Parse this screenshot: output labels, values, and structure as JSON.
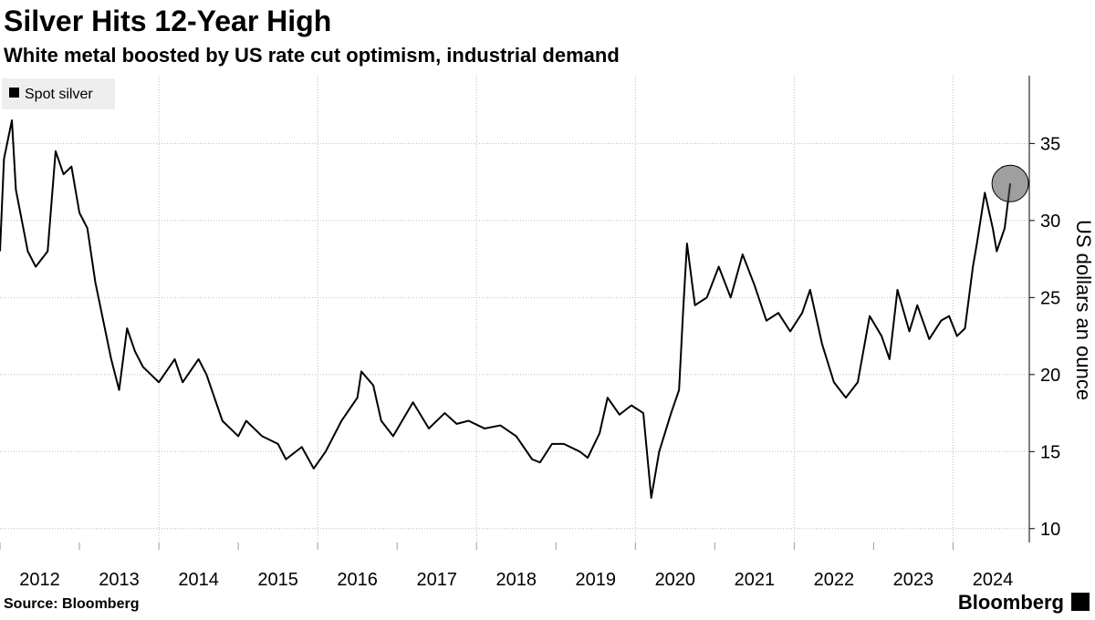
{
  "chart_data": {
    "type": "line",
    "title": "Silver Hits 12-Year High",
    "subtitle": "White metal boosted by US rate cut optimism, industrial demand",
    "y_label": "US dollars an ounce",
    "source": "Source: Bloomberg",
    "brand": "Bloomberg",
    "x": [
      2012.0,
      2012.05,
      2012.15,
      2012.2,
      2012.35,
      2012.45,
      2012.6,
      2012.7,
      2012.8,
      2012.9,
      2013.0,
      2013.1,
      2013.2,
      2013.3,
      2013.4,
      2013.5,
      2013.6,
      2013.7,
      2013.8,
      2013.9,
      2014.0,
      2014.2,
      2014.3,
      2014.5,
      2014.6,
      2014.8,
      2015.0,
      2015.1,
      2015.3,
      2015.5,
      2015.6,
      2015.8,
      2015.95,
      2016.1,
      2016.3,
      2016.5,
      2016.55,
      2016.7,
      2016.8,
      2016.95,
      2017.2,
      2017.4,
      2017.6,
      2017.75,
      2017.9,
      2018.1,
      2018.3,
      2018.5,
      2018.7,
      2018.8,
      2018.95,
      2019.1,
      2019.3,
      2019.4,
      2019.55,
      2019.65,
      2019.8,
      2019.95,
      2020.1,
      2020.2,
      2020.3,
      2020.45,
      2020.55,
      2020.6,
      2020.65,
      2020.75,
      2020.9,
      2021.05,
      2021.2,
      2021.35,
      2021.5,
      2021.65,
      2021.8,
      2021.95,
      2022.1,
      2022.2,
      2022.35,
      2022.5,
      2022.65,
      2022.8,
      2022.95,
      2023.1,
      2023.2,
      2023.3,
      2023.45,
      2023.55,
      2023.7,
      2023.85,
      2023.95,
      2024.05,
      2024.15,
      2024.25,
      2024.3,
      2024.4,
      2024.5,
      2024.55,
      2024.65,
      2024.72
    ],
    "series": [
      {
        "name": "Spot silver",
        "color": "#000000",
        "values": [
          28,
          34,
          36.5,
          32,
          28,
          27,
          28,
          34.5,
          33,
          33.5,
          30.5,
          29.5,
          26,
          23.5,
          21,
          19,
          23,
          21.5,
          20.5,
          20,
          19.5,
          21,
          19.5,
          21,
          20,
          17,
          16,
          17,
          16,
          15.5,
          14.5,
          15.3,
          13.9,
          15,
          17,
          18.5,
          20.2,
          19.3,
          17,
          16,
          18.2,
          16.5,
          17.5,
          16.8,
          17,
          16.5,
          16.7,
          16,
          14.5,
          14.3,
          15.5,
          15.5,
          15,
          14.6,
          16.2,
          18.5,
          17.4,
          18,
          17.5,
          12,
          15,
          17.5,
          19,
          24,
          28.5,
          24.5,
          25,
          27,
          25,
          27.8,
          25.8,
          23.5,
          24,
          22.8,
          24,
          25.5,
          22,
          19.5,
          18.5,
          19.5,
          23.8,
          22.5,
          21,
          25.5,
          22.8,
          24.5,
          22.3,
          23.5,
          23.8,
          22.5,
          23,
          27,
          28.5,
          31.8,
          29.5,
          28,
          29.5,
          32.4
        ]
      }
    ],
    "xlim": [
      2012,
      2024.96
    ],
    "xticks": [
      2012,
      2013,
      2014,
      2015,
      2016,
      2017,
      2018,
      2019,
      2020,
      2021,
      2022,
      2023,
      2024
    ],
    "ylim": [
      9.1,
      39.4
    ],
    "yticks": [
      10,
      15,
      20,
      25,
      30,
      35
    ],
    "grid": true
  }
}
